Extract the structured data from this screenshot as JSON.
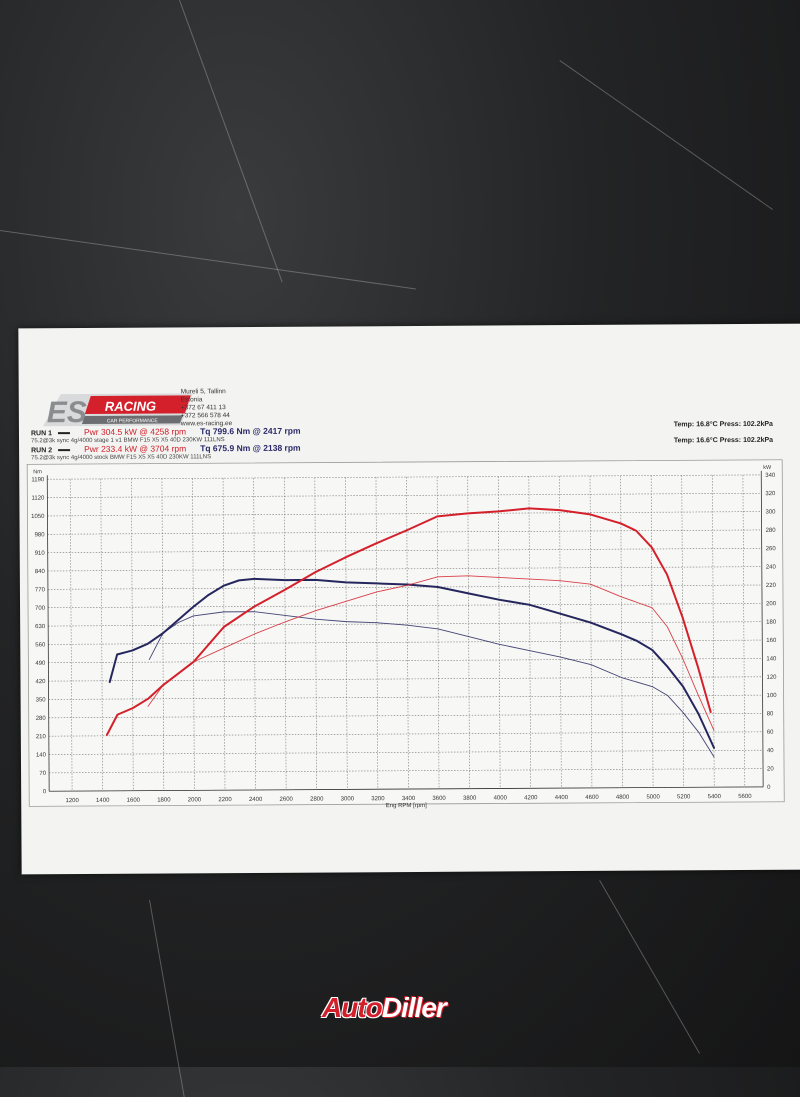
{
  "header": {
    "logo_text": "ES RACING",
    "logo_sub": "CAR PERFORMANCE",
    "address": [
      "Mureli 5, Tallinn",
      "Estonia",
      "+372 67 411 13",
      "+372 566 578 44",
      "www.es-racing.ee"
    ]
  },
  "runs": [
    {
      "label": "RUN 1",
      "power": "Pwr  304.5 kW @ 4258 rpm",
      "torque": "Tq 799.6 Nm @ 2417 rpm",
      "desc": "75.2@3k sync 4g/4000 stage 1 v1 BMW F15 X5 X5 40D 230KW 111LNS",
      "conditions": "Temp: 16.8°C   Press: 102.2kPa"
    },
    {
      "label": "RUN 2",
      "power": "Pwr  233.4 kW @ 3704 rpm",
      "torque": "Tq 675.9 Nm @ 2138 rpm",
      "desc": "75.2@3k sync 4g/4000 stock BMW F15 X5 X5 40D 230KW 111LNS",
      "conditions": "Temp: 16.6°C   Press: 102.2kPa"
    }
  ],
  "watermark": {
    "part1": "Auto",
    "part2": "Diller"
  },
  "chart_data": {
    "type": "line",
    "xlabel": "Eng RPM [rpm]",
    "ylabel_left": "Nm",
    "ylabel_right": "kW",
    "xlim": [
      1050,
      5720
    ],
    "ylim_left": [
      0,
      1190
    ],
    "ylim_right": [
      0,
      340
    ],
    "grid": true,
    "x_ticks": [
      1200,
      1400,
      1600,
      1800,
      2000,
      2200,
      2400,
      2600,
      2800,
      3000,
      3200,
      3400,
      3600,
      3800,
      4000,
      4200,
      4400,
      4600,
      4800,
      5000,
      5200,
      5400,
      5600
    ],
    "y_left_ticks": [
      0,
      70,
      140,
      210,
      280,
      350,
      420,
      490,
      560,
      630,
      700,
      770,
      840,
      910,
      980,
      1050,
      1120,
      1190
    ],
    "y_right_ticks": [
      0,
      20,
      40,
      60,
      80,
      100,
      120,
      140,
      160,
      180,
      200,
      220,
      240,
      260,
      280,
      300,
      320,
      340
    ],
    "colors": {
      "torque": "#25265e",
      "power": "#d3202b"
    },
    "series": [
      {
        "run": "RUN 1",
        "quantity": "torque",
        "axis": "left",
        "weight": "thick",
        "x": [
          1450,
          1500,
          1600,
          1700,
          1800,
          1900,
          2000,
          2100,
          2200,
          2300,
          2400,
          2600,
          2800,
          3000,
          3200,
          3400,
          3600,
          3800,
          4000,
          4200,
          4400,
          4600,
          4800,
          4900,
          5000,
          5100,
          5200,
          5300,
          5400
        ],
        "y": [
          415,
          520,
          535,
          560,
          600,
          650,
          700,
          745,
          780,
          800,
          805,
          800,
          800,
          790,
          785,
          780,
          770,
          745,
          720,
          700,
          665,
          630,
          585,
          560,
          525,
          460,
          385,
          280,
          150
        ]
      },
      {
        "run": "RUN 2",
        "quantity": "torque",
        "axis": "left",
        "weight": "thin",
        "x": [
          1710,
          1800,
          1900,
          2000,
          2200,
          2400,
          2600,
          2800,
          3000,
          3200,
          3400,
          3600,
          3800,
          4000,
          4200,
          4400,
          4600,
          4800,
          5000,
          5100,
          5200,
          5300,
          5400
        ],
        "y": [
          500,
          600,
          640,
          665,
          680,
          680,
          665,
          650,
          640,
          635,
          625,
          610,
          580,
          550,
          525,
          500,
          470,
          420,
          385,
          350,
          285,
          210,
          115
        ]
      },
      {
        "run": "RUN 1",
        "quantity": "power",
        "axis": "right",
        "weight": "thick",
        "x": [
          1430,
          1500,
          1600,
          1700,
          1800,
          2000,
          2200,
          2400,
          2600,
          2800,
          3000,
          3200,
          3400,
          3600,
          3800,
          4000,
          4200,
          4400,
          4600,
          4800,
          4900,
          5000,
          5100,
          5200,
          5300,
          5380
        ],
        "y": [
          61,
          83,
          90,
          100,
          115,
          140,
          178,
          200,
          218,
          237,
          253,
          268,
          282,
          297,
          300,
          302,
          305,
          303,
          298,
          288,
          280,
          262,
          232,
          185,
          130,
          82
        ]
      },
      {
        "run": "RUN 2",
        "quantity": "power",
        "axis": "right",
        "weight": "thin",
        "x": [
          1700,
          1800,
          2000,
          2200,
          2400,
          2600,
          2800,
          3000,
          3200,
          3400,
          3600,
          3800,
          4000,
          4200,
          4400,
          4600,
          4800,
          5000,
          5100,
          5200,
          5300,
          5400
        ],
        "y": [
          92,
          115,
          140,
          155,
          170,
          183,
          195,
          205,
          215,
          222,
          231,
          232,
          230,
          228,
          226,
          222,
          208,
          196,
          175,
          140,
          100,
          62
        ]
      }
    ]
  }
}
